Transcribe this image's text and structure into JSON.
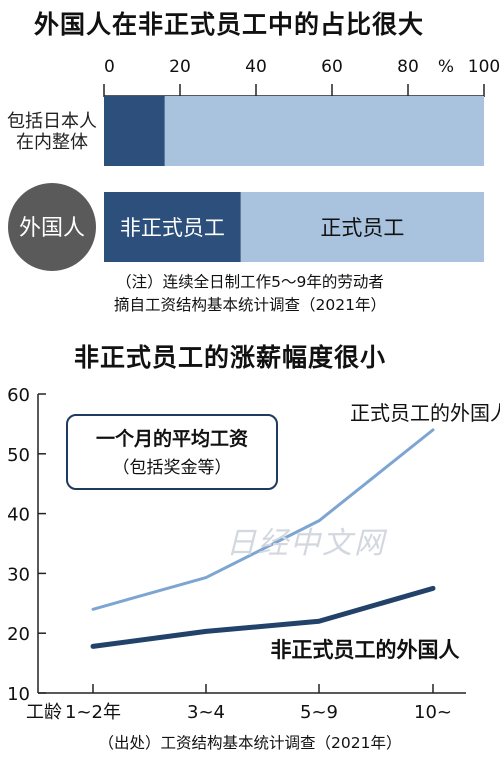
{
  "chart_data": [
    {
      "type": "bar",
      "title": "外国人在非正式员工中的占比很大",
      "axis_ticks": [
        "0",
        "20",
        "40",
        "60",
        "80",
        "100"
      ],
      "axis_unit": "%",
      "xlim": [
        0,
        100
      ],
      "rows": [
        {
          "label_lines": [
            "包括日本人",
            "在内整体"
          ],
          "circle_color": "#ffffff",
          "label_color": "#222222",
          "segments": [
            {
              "name": "",
              "value": 16,
              "color": "#2c4f7c"
            },
            {
              "name": "",
              "value": 84,
              "color": "#a9c3df"
            }
          ]
        },
        {
          "label_lines": [
            "外国人"
          ],
          "circle_color": "#5a5a5a",
          "label_color": "#ffffff",
          "segments": [
            {
              "name": "非正式员工",
              "value": 36,
              "color": "#2c4f7c",
              "text_color": "#ffffff"
            },
            {
              "name": "正式员工",
              "value": 64,
              "color": "#a9c3df",
              "text_color": "#111111"
            }
          ]
        }
      ],
      "notes": [
        "（注）连续全日制工作5～9年的劳动者",
        "摘自工资结构基本统计调查（2021年）"
      ]
    },
    {
      "type": "line",
      "title": "非正式员工的涨薪幅度很小",
      "box_title": "一个月的平均工资",
      "box_subtitle": "（包括奖金等）",
      "x_prefix": "工龄",
      "categories": [
        "1~2年",
        "3~4",
        "5~9",
        "10~"
      ],
      "yticks": [
        "10",
        "20",
        "30",
        "40",
        "50",
        "60"
      ],
      "ylim": [
        10,
        60
      ],
      "series": [
        {
          "name": "正式员工的外国人",
          "values": [
            24.0,
            29.3,
            38.8,
            54.0
          ],
          "color": "#7ca6d1"
        },
        {
          "name": "非正式员工的外国人",
          "values": [
            17.8,
            20.3,
            22.0,
            27.5
          ],
          "color": "#22426a"
        }
      ],
      "source": "（出处）工资结构基本统计调查（2021年）"
    }
  ],
  "watermark": "日经中文网"
}
